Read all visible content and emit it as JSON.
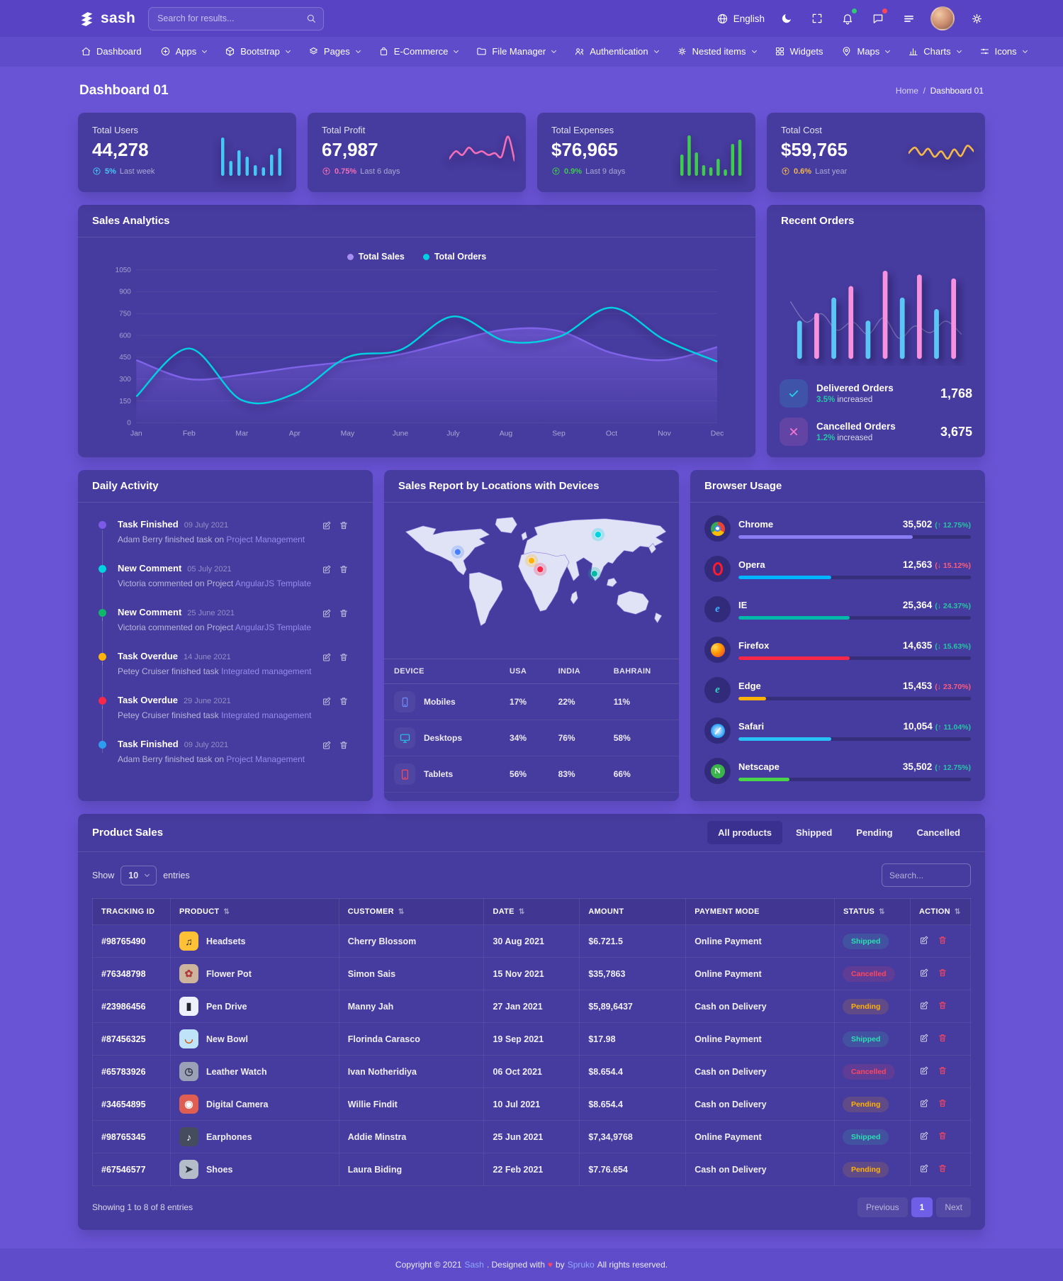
{
  "header": {
    "logo": "sash",
    "search_placeholder": "Search for results...",
    "language": "English"
  },
  "nav": {
    "items": [
      {
        "label": "Dashboard",
        "icon": "home",
        "caret": false
      },
      {
        "label": "Apps",
        "icon": "apps",
        "caret": true
      },
      {
        "label": "Bootstrap",
        "icon": "box",
        "caret": true
      },
      {
        "label": "Pages",
        "icon": "layers",
        "caret": true
      },
      {
        "label": "E-Commerce",
        "icon": "bag",
        "caret": true
      },
      {
        "label": "File Manager",
        "icon": "folder",
        "caret": true
      },
      {
        "label": "Authentication",
        "icon": "users",
        "caret": true
      },
      {
        "label": "Nested items",
        "icon": "gear",
        "caret": true
      },
      {
        "label": "Widgets",
        "icon": "widgets",
        "caret": false
      },
      {
        "label": "Maps",
        "icon": "pin",
        "caret": true
      },
      {
        "label": "Charts",
        "icon": "chart",
        "caret": true
      },
      {
        "label": "Icons",
        "icon": "sliders",
        "caret": true
      }
    ]
  },
  "page": {
    "title": "Dashboard 01",
    "breadcrumb_home": "Home",
    "breadcrumb_sep": "/",
    "breadcrumb_current": "Dashboard 01"
  },
  "stats": [
    {
      "label": "Total Users",
      "value": "44,278",
      "delta": "5%",
      "note": "Last week",
      "color": "#45c8f5",
      "chart": "bars",
      "spark": [
        90,
        35,
        60,
        45,
        25,
        20,
        50,
        65
      ]
    },
    {
      "label": "Total Profit",
      "value": "67,987",
      "delta": "0.75%",
      "note": "Last 6 days",
      "color": "#f46eb8",
      "chart": "line",
      "spark": [
        35,
        55,
        45,
        65,
        50,
        55,
        45,
        50,
        40,
        95,
        30
      ]
    },
    {
      "label": "Total Expenses",
      "value": "$76,965",
      "delta": "0.9%",
      "note": "Last 9 days",
      "color": "#3ecc4e",
      "chart": "bars",
      "spark": [
        50,
        95,
        55,
        25,
        20,
        40,
        15,
        75,
        85
      ]
    },
    {
      "label": "Total Cost",
      "value": "$59,765",
      "delta": "0.6%",
      "note": "Last year",
      "color": "#f5b849",
      "chart": "line",
      "spark": [
        50,
        65,
        45,
        62,
        40,
        55,
        35,
        60,
        42,
        70,
        55
      ]
    }
  ],
  "sales_analytics": {
    "title": "Sales Analytics",
    "chart_data": {
      "type": "area+line",
      "categories": [
        "Jan",
        "Feb",
        "Mar",
        "Apr",
        "May",
        "June",
        "July",
        "Aug",
        "Sep",
        "Oct",
        "Nov",
        "Dec"
      ],
      "ylim": [
        0,
        1050
      ],
      "ytick_step": 150,
      "grid": true,
      "legend_position": "top",
      "series": [
        {
          "name": "Total Sales",
          "color": "#7f63e8",
          "dot": "#a78ff1",
          "fill": true,
          "values": [
            430,
            300,
            330,
            380,
            420,
            470,
            560,
            640,
            630,
            480,
            430,
            520
          ]
        },
        {
          "name": "Total Orders",
          "color": "#00d0e0",
          "dot": "#00d0e0",
          "fill": false,
          "values": [
            180,
            510,
            155,
            200,
            450,
            500,
            730,
            560,
            590,
            790,
            570,
            420
          ]
        }
      ]
    }
  },
  "recent_orders": {
    "title": "Recent Orders",
    "chart": {
      "values": [
        40,
        48,
        64,
        76,
        40,
        92,
        64,
        88,
        52,
        84
      ],
      "colors": [
        "#5bc6f5",
        "#f791dd"
      ],
      "bgline": [
        70,
        45,
        55,
        35,
        45,
        30,
        50,
        25,
        40,
        32,
        46,
        30
      ]
    },
    "items": [
      {
        "label": "Delivered Orders",
        "pct": "3.5%",
        "note": "increased",
        "value": "1,768",
        "icon": "check",
        "icon_color": "#22d3e5",
        "icon_bg": "rgba(34,211,229,.16)"
      },
      {
        "label": "Cancelled Orders",
        "pct": "1.2%",
        "note": "increased",
        "value": "3,675",
        "icon": "x",
        "icon_color": "#f775d0",
        "icon_bg": "rgba(247,117,208,.16)"
      }
    ]
  },
  "daily_activity": {
    "title": "Daily Activity",
    "items": [
      {
        "color": "#7c59e6",
        "title": "Task Finished",
        "date": "09 July 2021",
        "text": "Adam Berry finished task on",
        "link": "Project Management"
      },
      {
        "color": "#00d3e0",
        "title": "New Comment",
        "date": "05 July 2021",
        "text": "Victoria commented on Project",
        "link": "AngularJS Template"
      },
      {
        "color": "#10b76b",
        "title": "New Comment",
        "date": "25 June 2021",
        "text": "Victoria commented on Project",
        "link": "AngularJS Template"
      },
      {
        "color": "#ffb209",
        "title": "Task Overdue",
        "date": "14 June 2021",
        "text": "Petey Cruiser finished task",
        "link": "Integrated management"
      },
      {
        "color": "#f7284a",
        "title": "Task Overdue",
        "date": "29 June 2021",
        "text": "Petey Cruiser finished task",
        "link": "Integrated management"
      },
      {
        "color": "#2d9eef",
        "title": "Task Finished",
        "date": "09 July 2021",
        "text": "Adam Berry finished task on",
        "link": "Project Management"
      }
    ]
  },
  "sales_report": {
    "title": "Sales Report by Locations with Devices",
    "markers": [
      {
        "x": 88,
        "y": 58,
        "color": "#4680ff"
      },
      {
        "x": 190,
        "y": 70,
        "color": "#ffb209"
      },
      {
        "x": 202,
        "y": 82,
        "color": "#f7284a"
      },
      {
        "x": 277,
        "y": 88,
        "color": "#01b8a9"
      },
      {
        "x": 282,
        "y": 34,
        "color": "#00d3e0"
      }
    ],
    "table": {
      "columns": [
        "DEVICE",
        "USA",
        "INDIA",
        "BAHRAIN"
      ],
      "rows": [
        {
          "icon": "phone",
          "color": "#6d8cf7",
          "device": "Mobiles",
          "usa": "17%",
          "india": "22%",
          "bahrain": "11%"
        },
        {
          "icon": "monitor",
          "color": "#22c7e5",
          "device": "Desktops",
          "usa": "34%",
          "india": "76%",
          "bahrain": "58%"
        },
        {
          "icon": "tablet",
          "color": "#fb4760",
          "device": "Tablets",
          "usa": "56%",
          "india": "83%",
          "bahrain": "66%"
        }
      ]
    }
  },
  "browser_usage": {
    "title": "Browser Usage",
    "items": [
      {
        "name": "Chrome",
        "value": "35,502",
        "delta": "(↑ 12.75%)",
        "delta_color": "#26c6a5",
        "brand": "chrome",
        "glyph": "",
        "bar_color": "#887df3",
        "bar_pct": 75
      },
      {
        "name": "Opera",
        "value": "12,563",
        "delta": "(↓ 15.12%)",
        "delta_color": "#fb5d7d",
        "brand": "opera",
        "glyph": "",
        "bar_color": "#00b4ff",
        "bar_pct": 40
      },
      {
        "name": "IE",
        "value": "25,364",
        "delta": "(↓ 24.37%)",
        "delta_color": "#26c6a5",
        "brand": "ie",
        "glyph": "e",
        "bar_color": "#01b8a9",
        "bar_pct": 48
      },
      {
        "name": "Firefox",
        "value": "14,635",
        "delta": "(↓ 15.63%)",
        "delta_color": "#26c6a5",
        "brand": "firefox",
        "glyph": "",
        "bar_color": "#f7284a",
        "bar_pct": 48
      },
      {
        "name": "Edge",
        "value": "15,453",
        "delta": "(↓ 23.70%)",
        "delta_color": "#fb5d7d",
        "brand": "edge",
        "glyph": "e",
        "bar_color": "#ffb209",
        "bar_pct": 12
      },
      {
        "name": "Safari",
        "value": "10,054",
        "delta": "(↑ 11.04%)",
        "delta_color": "#26c6a5",
        "brand": "safari",
        "glyph": "",
        "bar_color": "#29c2f7",
        "bar_pct": 40
      },
      {
        "name": "Netscape",
        "value": "35,502",
        "delta": "(↑ 12.75%)",
        "delta_color": "#26c6a5",
        "brand": "netscape",
        "glyph": "N",
        "bar_color": "#4ad44a",
        "bar_pct": 22
      }
    ]
  },
  "product_sales": {
    "title": "Product Sales",
    "tabs": [
      {
        "label": "All products",
        "active": true
      },
      {
        "label": "Shipped",
        "active": false
      },
      {
        "label": "Pending",
        "active": false
      },
      {
        "label": "Cancelled",
        "active": false
      }
    ],
    "show_label": "Show",
    "page_size": "10",
    "entries_label": "entries",
    "search_placeholder": "Search...",
    "sort_glyph": "⇅",
    "columns": [
      {
        "label": "TRACKING ID",
        "sort": false
      },
      {
        "label": "PRODUCT",
        "sort": true
      },
      {
        "label": "CUSTOMER",
        "sort": true
      },
      {
        "label": "DATE",
        "sort": true
      },
      {
        "label": "AMOUNT",
        "sort": false
      },
      {
        "label": "PAYMENT MODE",
        "sort": false
      },
      {
        "label": "STATUS",
        "sort": true
      },
      {
        "label": "ACTION",
        "sort": true
      }
    ],
    "rows": [
      {
        "tracking": "#98765490",
        "product": "Headsets",
        "glyph": "♫",
        "tile_bg": "#ffc136",
        "tile_fg": "#20242e",
        "customer": "Cherry Blossom",
        "date": "30 Aug 2021",
        "amount": "$6.721.5",
        "payment": "Online Payment",
        "status": "Shipped"
      },
      {
        "tracking": "#76348798",
        "product": "Flower Pot",
        "glyph": "✿",
        "tile_bg": "#cdb49c",
        "tile_fg": "#b03a3a",
        "customer": "Simon Sais",
        "date": "15 Nov 2021",
        "amount": "$35,7863",
        "payment": "Online Payment",
        "status": "Cancelled"
      },
      {
        "tracking": "#23986456",
        "product": "Pen Drive",
        "glyph": "▮",
        "tile_bg": "#eef1fb",
        "tile_fg": "#23262e",
        "customer": "Manny Jah",
        "date": "27 Jan 2021",
        "amount": "$5,89,6437",
        "payment": "Cash on Delivery",
        "status": "Pending"
      },
      {
        "tracking": "#87456325",
        "product": "New Bowl",
        "glyph": "◡",
        "tile_bg": "#bfe3f8",
        "tile_fg": "#d35400",
        "customer": "Florinda Carasco",
        "date": "19 Sep 2021",
        "amount": "$17.98",
        "payment": "Online Payment",
        "status": "Shipped"
      },
      {
        "tracking": "#65783926",
        "product": "Leather Watch",
        "glyph": "◷",
        "tile_bg": "#9aa0b5",
        "tile_fg": "#2e3340",
        "customer": "Ivan Notheridiya",
        "date": "06 Oct 2021",
        "amount": "$8.654.4",
        "payment": "Cash on Delivery",
        "status": "Cancelled"
      },
      {
        "tracking": "#34654895",
        "product": "Digital Camera",
        "glyph": "◉",
        "tile_bg": "#df5e52",
        "tile_fg": "#ffffff",
        "customer": "Willie Findit",
        "date": "10 Jul 2021",
        "amount": "$8.654.4",
        "payment": "Cash on Delivery",
        "status": "Pending"
      },
      {
        "tracking": "#98765345",
        "product": "Earphones",
        "glyph": "♪",
        "tile_bg": "#454c5e",
        "tile_fg": "#ffffff",
        "customer": "Addie Minstra",
        "date": "25 Jun 2021",
        "amount": "$7,34,9768",
        "payment": "Online Payment",
        "status": "Shipped"
      },
      {
        "tracking": "#67546577",
        "product": "Shoes",
        "glyph": "➤",
        "tile_bg": "#b4bcc9",
        "tile_fg": "#2e3340",
        "customer": "Laura Biding",
        "date": "22 Feb 2021",
        "amount": "$7.76.654",
        "payment": "Cash on Delivery",
        "status": "Pending"
      }
    ],
    "status_styles": {
      "Shipped": {
        "fg": "#2be0b0",
        "bg": "rgba(43,224,176,.14)"
      },
      "Cancelled": {
        "fg": "#fb4760",
        "bg": "rgba(251,71,96,.14)"
      },
      "Pending": {
        "fg": "#ffb209",
        "bg": "rgba(255,178,9,.14)"
      }
    },
    "summary": "Showing 1 to 8 of 8 entries",
    "pagination": {
      "prev": "Previous",
      "page": "1",
      "next": "Next"
    }
  },
  "footer": {
    "prefix": "Copyright © 2021",
    "brand": "Sash",
    "middle": ". Designed with",
    "heart": "♥",
    "by": "by",
    "designer": "Spruko",
    "suffix": "All rights reserved."
  }
}
